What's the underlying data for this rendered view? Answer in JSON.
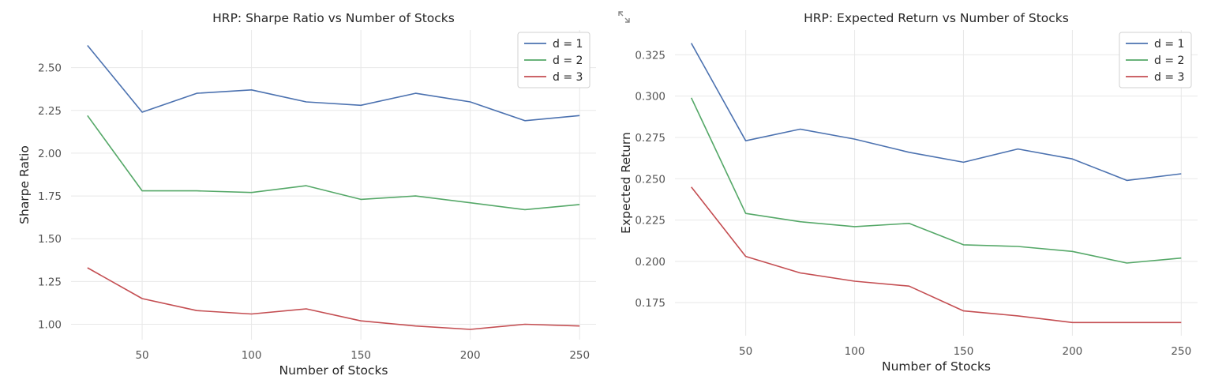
{
  "chart_data": [
    {
      "type": "line",
      "title": "HRP: Sharpe Ratio vs Number of Stocks",
      "xlabel": "Number of Stocks",
      "ylabel": "Sharpe Ratio",
      "x": [
        25,
        50,
        75,
        100,
        125,
        150,
        175,
        200,
        225,
        250
      ],
      "xlim": [
        17.5,
        257.5
      ],
      "ylim": [
        0.91,
        2.72
      ],
      "xticks": [
        50,
        100,
        150,
        200,
        250
      ],
      "yticks": [
        1.0,
        1.25,
        1.5,
        1.75,
        2.0,
        2.25,
        2.5
      ],
      "ytick_labels": [
        "1.00",
        "1.25",
        "1.50",
        "1.75",
        "2.00",
        "2.25",
        "2.50"
      ],
      "grid": true,
      "legend": "top-right",
      "series": [
        {
          "name": "d = 1",
          "color": "#4c72b0",
          "values": [
            2.63,
            2.24,
            2.35,
            2.37,
            2.3,
            2.28,
            2.35,
            2.3,
            2.19,
            2.22
          ]
        },
        {
          "name": "d = 2",
          "color": "#55a868",
          "values": [
            2.22,
            1.78,
            1.78,
            1.77,
            1.81,
            1.73,
            1.75,
            1.71,
            1.67,
            1.7
          ]
        },
        {
          "name": "d = 3",
          "color": "#c44e52",
          "values": [
            1.33,
            1.15,
            1.08,
            1.06,
            1.09,
            1.02,
            0.99,
            0.97,
            1.0,
            0.99
          ]
        }
      ]
    },
    {
      "type": "line",
      "title": "HRP: Expected Return vs Number of Stocks",
      "xlabel": "Number of Stocks",
      "ylabel": "Expected Return",
      "x": [
        25,
        50,
        75,
        100,
        125,
        150,
        175,
        200,
        225,
        250
      ],
      "xlim": [
        17.5,
        257.5
      ],
      "ylim": [
        0.155,
        0.34
      ],
      "xticks": [
        50,
        100,
        150,
        200,
        250
      ],
      "yticks": [
        0.175,
        0.2,
        0.225,
        0.25,
        0.275,
        0.3,
        0.325
      ],
      "ytick_labels": [
        "0.175",
        "0.200",
        "0.225",
        "0.250",
        "0.275",
        "0.300",
        "0.325"
      ],
      "grid": true,
      "legend": "top-right",
      "series": [
        {
          "name": "d = 1",
          "color": "#4c72b0",
          "values": [
            0.332,
            0.273,
            0.28,
            0.274,
            0.266,
            0.26,
            0.268,
            0.262,
            0.249,
            0.253
          ]
        },
        {
          "name": "d = 2",
          "color": "#55a868",
          "values": [
            0.299,
            0.229,
            0.224,
            0.221,
            0.223,
            0.21,
            0.209,
            0.206,
            0.199,
            0.202
          ]
        },
        {
          "name": "d = 3",
          "color": "#c44e52",
          "values": [
            0.245,
            0.203,
            0.193,
            0.188,
            0.185,
            0.17,
            0.167,
            0.163,
            0.163,
            0.163
          ]
        }
      ]
    }
  ],
  "icons": {
    "expand": "expand-icon"
  }
}
